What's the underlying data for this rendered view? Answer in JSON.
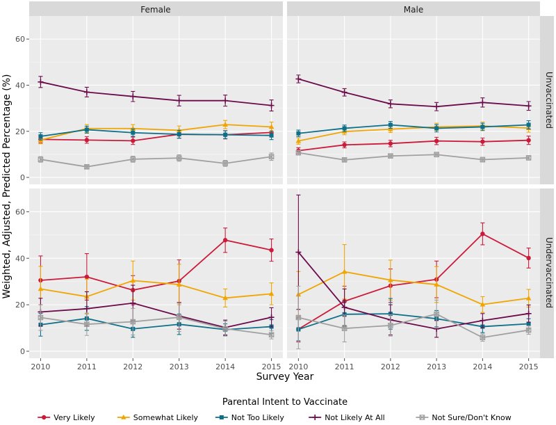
{
  "chart_data": {
    "type": "line",
    "xlabel": "Survey Year",
    "ylabel": "Weighted, Adjusted, Predicted Percentage (%)",
    "x": [
      2010,
      2011,
      2012,
      2013,
      2014,
      2015
    ],
    "ylim": [
      -3,
      70
    ],
    "yticks": [
      0,
      20,
      40,
      60
    ],
    "grid": true,
    "legend_title": "Parental Intent to Vaccinate",
    "legend_position": "bottom",
    "columns": [
      "Female",
      "Male"
    ],
    "rows": [
      "Unvaccinated",
      "Undervaccinated"
    ],
    "series_styles": [
      {
        "name": "Very Likely",
        "color": "#cc1a3a",
        "marker": "circle"
      },
      {
        "name": "Somewhat Likely",
        "color": "#f0a500",
        "marker": "triangle"
      },
      {
        "name": "Not Too Likely",
        "color": "#0e7088",
        "marker": "square"
      },
      {
        "name": "Not Likely At All",
        "color": "#6b0a4a",
        "marker": "plus"
      },
      {
        "name": "Not Sure/Don't Know",
        "color": "#a0a0a0",
        "marker": "boxx"
      }
    ],
    "panels": [
      {
        "column": "Female",
        "row": "Unvaccinated",
        "series": [
          {
            "name": "Very Likely",
            "values": [
              16.5,
              16.2,
              15.9,
              18.7,
              18.5,
              19.5
            ],
            "lower": [
              15.0,
              14.8,
              14.3,
              17.0,
              16.7,
              17.6
            ],
            "upper": [
              18.0,
              17.7,
              17.5,
              20.4,
              20.3,
              21.4
            ]
          },
          {
            "name": "Somewhat Likely",
            "values": [
              16.2,
              21.2,
              21.2,
              20.4,
              22.9,
              21.9
            ],
            "lower": [
              14.6,
              19.5,
              19.5,
              18.5,
              21.1,
              19.8
            ],
            "upper": [
              17.8,
              22.9,
              22.9,
              22.3,
              24.7,
              24.0
            ]
          },
          {
            "name": "Not Too Likely",
            "values": [
              17.8,
              20.7,
              19.4,
              18.7,
              18.5,
              18.2
            ],
            "lower": [
              16.2,
              19.2,
              17.8,
              17.0,
              16.8,
              16.4
            ],
            "upper": [
              19.4,
              22.2,
              21.0,
              20.4,
              20.2,
              20.0
            ]
          },
          {
            "name": "Not Likely At All",
            "values": [
              41.4,
              37.0,
              35.1,
              33.3,
              33.3,
              31.2
            ],
            "lower": [
              39.0,
              34.9,
              32.9,
              31.0,
              30.9,
              28.8
            ],
            "upper": [
              43.8,
              39.1,
              37.3,
              35.6,
              35.7,
              33.6
            ]
          },
          {
            "name": "Not Sure/Don't Know",
            "values": [
              7.8,
              4.6,
              7.9,
              8.4,
              6.1,
              9.0
            ],
            "lower": [
              6.6,
              3.8,
              6.6,
              7.0,
              4.8,
              7.4
            ],
            "upper": [
              9.0,
              5.4,
              9.2,
              9.8,
              7.4,
              10.6
            ]
          }
        ]
      },
      {
        "column": "Male",
        "row": "Unvaccinated",
        "series": [
          {
            "name": "Very Likely",
            "values": [
              11.6,
              14.1,
              14.7,
              15.8,
              15.5,
              16.1
            ],
            "lower": [
              10.3,
              12.8,
              13.3,
              14.2,
              13.9,
              14.3
            ],
            "upper": [
              12.9,
              15.4,
              16.1,
              17.4,
              17.1,
              17.9
            ]
          },
          {
            "name": "Somewhat Likely",
            "values": [
              15.8,
              19.9,
              20.9,
              21.9,
              22.3,
              21.4
            ],
            "lower": [
              14.4,
              18.5,
              19.5,
              20.3,
              20.6,
              19.6
            ],
            "upper": [
              17.2,
              21.3,
              22.3,
              23.5,
              24.0,
              23.2
            ]
          },
          {
            "name": "Not Too Likely",
            "values": [
              19.1,
              21.3,
              22.8,
              21.3,
              21.9,
              22.8
            ],
            "lower": [
              17.7,
              19.9,
              21.3,
              19.7,
              20.3,
              21.0
            ],
            "upper": [
              20.5,
              22.7,
              24.3,
              22.9,
              23.5,
              24.6
            ]
          },
          {
            "name": "Not Likely At All",
            "values": [
              42.7,
              36.9,
              31.9,
              30.7,
              32.5,
              31.0
            ],
            "lower": [
              41.0,
              35.3,
              30.2,
              28.9,
              30.5,
              29.1
            ],
            "upper": [
              44.4,
              38.5,
              33.6,
              32.5,
              34.5,
              32.9
            ]
          },
          {
            "name": "Not Sure/Don't Know",
            "values": [
              10.7,
              7.6,
              9.3,
              9.9,
              7.7,
              8.5
            ],
            "lower": [
              9.7,
              6.8,
              8.4,
              8.9,
              6.7,
              7.5
            ],
            "upper": [
              11.7,
              8.4,
              10.2,
              10.9,
              8.7,
              9.5
            ]
          }
        ]
      },
      {
        "column": "Female",
        "row": "Undervaccinated",
        "series": [
          {
            "name": "Very Likely",
            "values": [
              30.5,
              32.0,
              26.3,
              30.2,
              47.8,
              43.5
            ],
            "lower": [
              20.0,
              22.0,
              20.0,
              21.0,
              42.5,
              38.7
            ],
            "upper": [
              41.0,
              42.0,
              32.5,
              39.3,
              53.0,
              48.3
            ]
          },
          {
            "name": "Somewhat Likely",
            "values": [
              26.8,
              23.5,
              30.4,
              28.7,
              22.9,
              24.7
            ],
            "lower": [
              17.0,
              16.0,
              22.0,
              20.0,
              19.0,
              20.0
            ],
            "upper": [
              36.5,
              31.0,
              38.8,
              37.4,
              26.8,
              29.4
            ]
          },
          {
            "name": "Not Too Likely",
            "values": [
              11.4,
              14.1,
              9.6,
              11.6,
              9.3,
              10.6
            ],
            "lower": [
              6.5,
              9.0,
              6.0,
              7.2,
              6.8,
              7.6
            ],
            "upper": [
              16.3,
              19.2,
              13.2,
              16.0,
              11.8,
              13.6
            ]
          },
          {
            "name": "Not Likely At All",
            "values": [
              16.9,
              18.3,
              20.7,
              15.2,
              10.2,
              14.6
            ],
            "lower": [
              11.0,
              11.0,
              13.0,
              9.5,
              7.0,
              10.5
            ],
            "upper": [
              22.8,
              25.6,
              28.4,
              20.9,
              13.4,
              18.7
            ]
          },
          {
            "name": "Not Sure/Don't Know",
            "values": [
              14.5,
              11.6,
              12.7,
              14.6,
              9.7,
              7.1
            ],
            "lower": [
              9.0,
              6.8,
              7.0,
              8.5,
              6.5,
              5.3
            ],
            "upper": [
              20.0,
              16.4,
              18.4,
              20.7,
              12.9,
              8.9
            ]
          }
        ]
      },
      {
        "column": "Male",
        "row": "Undervaccinated",
        "series": [
          {
            "name": "Very Likely",
            "values": [
              9.5,
              21.5,
              28.2,
              30.9,
              50.5,
              40.1
            ],
            "lower": [
              4.0,
              15.0,
              21.0,
              23.0,
              45.8,
              35.8
            ],
            "upper": [
              15.0,
              28.0,
              35.4,
              38.8,
              55.2,
              44.4
            ]
          },
          {
            "name": "Somewhat Likely",
            "values": [
              24.4,
              34.2,
              30.6,
              28.7,
              20.1,
              22.8
            ],
            "lower": [
              14.5,
              22.5,
              22.0,
              21.0,
              16.7,
              19.0
            ],
            "upper": [
              34.3,
              45.9,
              39.2,
              36.4,
              23.5,
              26.6
            ]
          },
          {
            "name": "Not Too Likely",
            "values": [
              9.4,
              15.9,
              16.1,
              14.0,
              10.6,
              11.8
            ],
            "lower": [
              4.5,
              10.5,
              9.5,
              10.5,
              8.0,
              9.6
            ],
            "upper": [
              14.3,
              21.3,
              22.7,
              17.5,
              13.2,
              14.0
            ]
          },
          {
            "name": "Not Likely At All",
            "values": [
              42.6,
              18.9,
              13.5,
              9.6,
              13.2,
              16.2
            ],
            "lower": [
              18.0,
              11.0,
              7.0,
              6.0,
              10.2,
              12.5
            ],
            "upper": [
              67.2,
              26.8,
              20.0,
              13.2,
              16.2,
              19.9
            ]
          },
          {
            "name": "Not Sure/Don't Know",
            "values": [
              14.5,
              9.8,
              11.1,
              16.0,
              5.9,
              9.1
            ],
            "lower": [
              1.0,
              4.0,
              6.5,
              10.0,
              4.3,
              7.3
            ],
            "upper": [
              28.0,
              15.6,
              15.7,
              22.0,
              7.5,
              10.9
            ]
          }
        ]
      }
    ]
  }
}
